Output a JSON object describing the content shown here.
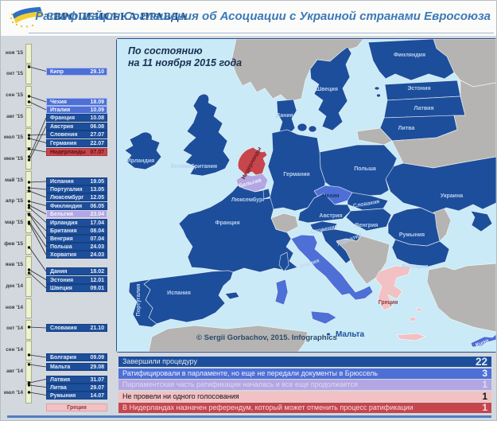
{
  "header": {
    "logo_text": "ЄВРОПЕЙСЬКА ПРАВДА",
    "title": "Ратификация Соглашения об Асоциации с Украиной странами Евросоюза"
  },
  "map": {
    "status_note_line1": "По состоянию",
    "status_note_line2": "на 11 ноября 2015 года",
    "copyright": "© Sergii Gorbachov, 2015. Infographics",
    "labels": [
      {
        "name": "Финляндия",
        "category": "completed"
      },
      {
        "name": "Швеция",
        "category": "completed"
      },
      {
        "name": "Эстония",
        "category": "completed"
      },
      {
        "name": "Латвия",
        "category": "completed"
      },
      {
        "name": "Литва",
        "category": "completed"
      },
      {
        "name": "Дания",
        "category": "completed"
      },
      {
        "name": "Ирландия",
        "category": "completed"
      },
      {
        "name": "Великобритания",
        "category": "completed"
      },
      {
        "name": "Нидерланды",
        "category": "referendum"
      },
      {
        "name": "Бельгия",
        "category": "inprogress"
      },
      {
        "name": "Люксембург",
        "category": "completed"
      },
      {
        "name": "Германия",
        "category": "completed"
      },
      {
        "name": "Польша",
        "category": "completed"
      },
      {
        "name": "Чехия",
        "category": "parliament"
      },
      {
        "name": "Словакия",
        "category": "completed"
      },
      {
        "name": "Австрия",
        "category": "completed"
      },
      {
        "name": "Венгрия",
        "category": "completed"
      },
      {
        "name": "Украина",
        "category": "completed"
      },
      {
        "name": "Словения",
        "category": "completed"
      },
      {
        "name": "Хорватия",
        "category": "completed"
      },
      {
        "name": "Румыния",
        "category": "completed"
      },
      {
        "name": "Италия",
        "category": "parliament"
      },
      {
        "name": "Франция",
        "category": "completed"
      },
      {
        "name": "Испания",
        "category": "completed"
      },
      {
        "name": "Португалия",
        "category": "completed"
      },
      {
        "name": "Болгария",
        "category": "completed"
      },
      {
        "name": "Греция",
        "category": "novote"
      },
      {
        "name": "Мальта",
        "category": "completed"
      },
      {
        "name": "Кипр",
        "category": "parliament"
      }
    ]
  },
  "timeline": {
    "months": [
      "ноя '15",
      "окт '15",
      "сен '15",
      "авг '15",
      "июл '15",
      "июн '15",
      "май '15",
      "апр '15",
      "мар '15",
      "фев '15",
      "янв '15",
      "дек '14",
      "ноя '14",
      "окт '14",
      "сен '14",
      "авг '14",
      "июл '14"
    ],
    "entries": [
      {
        "country": "Кипр",
        "date": "29.10",
        "category": "parliament"
      },
      {
        "country": "Чехия",
        "date": "18.09",
        "category": "parliament"
      },
      {
        "country": "Италия",
        "date": "10.09",
        "category": "parliament"
      },
      {
        "country": "Франция",
        "date": "10.08",
        "category": "completed"
      },
      {
        "country": "Австрия",
        "date": "06.08",
        "category": "completed"
      },
      {
        "country": "Словения",
        "date": "27.07",
        "category": "completed"
      },
      {
        "country": "Германия",
        "date": "22.07",
        "category": "completed"
      },
      {
        "country": "Нидерланды",
        "date": "07.07",
        "category": "referendum"
      },
      {
        "country": "Испания",
        "date": "19.05",
        "category": "completed"
      },
      {
        "country": "Португалия",
        "date": "13.05",
        "category": "completed"
      },
      {
        "country": "Люксембург",
        "date": "12.05",
        "category": "completed"
      },
      {
        "country": "Финляндия",
        "date": "06.05",
        "category": "completed"
      },
      {
        "country": "Бельгия",
        "date": "23.04",
        "category": "inprogress"
      },
      {
        "country": "Ирландия",
        "date": "17.04",
        "category": "completed"
      },
      {
        "country": "Британия",
        "date": "08.04",
        "category": "completed"
      },
      {
        "country": "Венгрия",
        "date": "07.04",
        "category": "completed"
      },
      {
        "country": "Польша",
        "date": "24.03",
        "category": "completed"
      },
      {
        "country": "Хорватия",
        "date": "24.03",
        "category": "completed"
      },
      {
        "country": "Дания",
        "date": "18.02",
        "category": "completed"
      },
      {
        "country": "Эстония",
        "date": "12.01",
        "category": "completed"
      },
      {
        "country": "Швеция",
        "date": "09.01",
        "category": "completed"
      },
      {
        "country": "Словакия",
        "date": "21.10",
        "category": "completed"
      },
      {
        "country": "Болгария",
        "date": "09.09",
        "category": "completed"
      },
      {
        "country": "Мальта",
        "date": "29.08",
        "category": "completed"
      },
      {
        "country": "Латвия",
        "date": "31.07",
        "category": "completed"
      },
      {
        "country": "Литва",
        "date": "29.07",
        "category": "completed"
      },
      {
        "country": "Румыния",
        "date": "14.07",
        "category": "completed"
      },
      {
        "country": "Греция",
        "date": "",
        "category": "novote"
      }
    ]
  },
  "legend": {
    "items": [
      {
        "label": "Завершили процедуру",
        "count": "22",
        "category": "completed"
      },
      {
        "label": "Ратифицировали в парламенте, но еще не передали документы в Брюссель",
        "count": "3",
        "category": "parliament"
      },
      {
        "label": "Парламентская часть ратификации началась и все еще продолжается",
        "count": "1",
        "category": "inprogress"
      },
      {
        "label": "Не провели ни одного голосования",
        "count": "1",
        "category": "novote"
      },
      {
        "label": "В Нидерландах назначен референдум, который может отменить процесс ратификации",
        "count": "1",
        "category": "referendum"
      }
    ]
  },
  "colors": {
    "completed": "#1d4e9b",
    "parliament": "#4d6fd6",
    "inprogress": "#b2a7e2",
    "novote": "#f2c1c4",
    "referendum": "#c5464d",
    "sea": "#c9eaf6",
    "noneu": "#b5b4b2"
  }
}
